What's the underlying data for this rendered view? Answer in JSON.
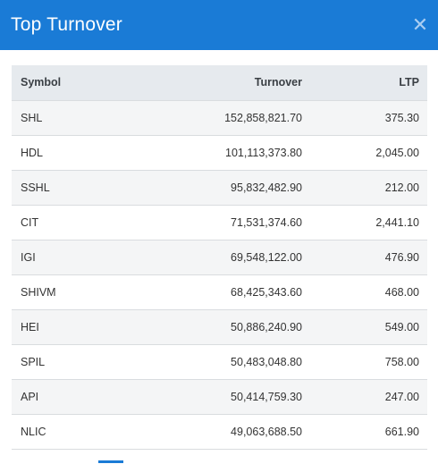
{
  "header": {
    "title": "Top Turnover",
    "close_glyph": "✕"
  },
  "table": {
    "columns": [
      "Symbol",
      "Turnover",
      "LTP"
    ],
    "rows": [
      [
        "SHL",
        "152,858,821.70",
        "375.30"
      ],
      [
        "HDL",
        "101,113,373.80",
        "2,045.00"
      ],
      [
        "SSHL",
        "95,832,482.90",
        "212.00"
      ],
      [
        "CIT",
        "71,531,374.60",
        "2,441.10"
      ],
      [
        "IGI",
        "69,548,122.00",
        "476.90"
      ],
      [
        "SHIVM",
        "68,425,343.60",
        "468.00"
      ],
      [
        "HEI",
        "50,886,240.90",
        "549.00"
      ],
      [
        "SPIL",
        "50,483,048.80",
        "758.00"
      ],
      [
        "API",
        "50,414,759.30",
        "247.00"
      ],
      [
        "NLIC",
        "49,063,688.50",
        "661.90"
      ]
    ]
  },
  "colors": {
    "header_bg": "#1a7bd6",
    "close_icon": "#a9cdf2",
    "row_alt": "#f4f5f6",
    "thead_bg": "#e6eaee"
  }
}
